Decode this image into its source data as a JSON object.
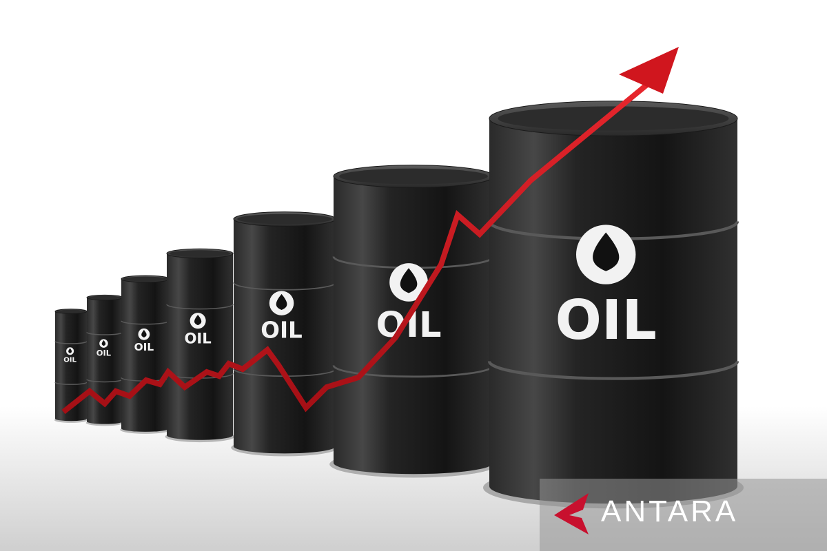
{
  "scene": {
    "barrel_label": "OIL",
    "barrel_count": 7,
    "icon": "oil-drop-icon",
    "colors": {
      "background": "#ffffff",
      "barrel": "#1c1c1c",
      "arrow": "#d0161e",
      "label": "#f2f2f2"
    }
  },
  "watermark": {
    "text": "ANTARA",
    "logo_color": "#c8102e"
  }
}
